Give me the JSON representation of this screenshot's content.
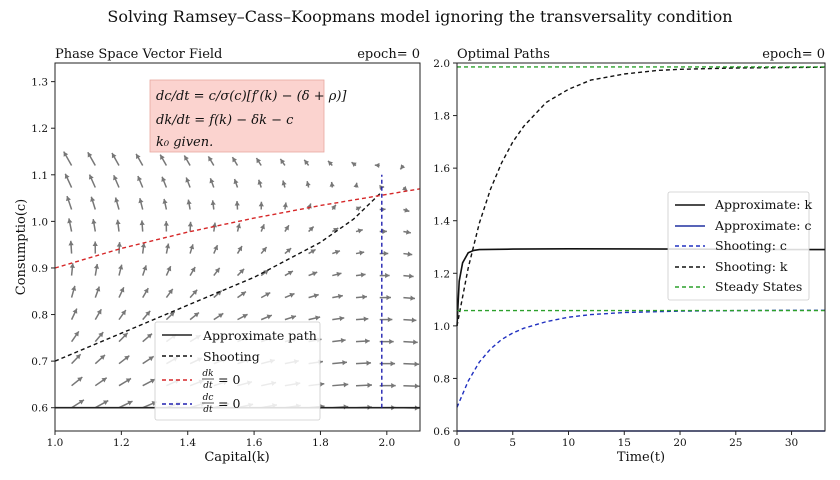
{
  "figure": {
    "title": "Solving Ramsey–Cass–Koopmans model ignoring the transversality condition"
  },
  "chart_data": [
    {
      "type": "line",
      "panel_title": "Phase Space Vector Field",
      "epoch_label": "epoch= 0",
      "xlabel": "Capital(k)",
      "ylabel": "Consumptio(c)",
      "xlim": [
        1.0,
        2.1
      ],
      "ylim": [
        0.55,
        1.34
      ],
      "xticks": [
        "1.0",
        "1.2",
        "1.4",
        "1.6",
        "1.8",
        "2.0"
      ],
      "xtick_values": [
        1.0,
        1.2,
        1.4,
        1.6,
        1.8,
        2.0
      ],
      "yticks": [
        "0.6",
        "0.7",
        "0.8",
        "0.9",
        "1.0",
        "1.1",
        "1.2",
        "1.3"
      ],
      "ytick_values": [
        0.6,
        0.7,
        0.8,
        0.9,
        1.0,
        1.1,
        1.2,
        1.3
      ],
      "grid": false,
      "legend_position": "lower-right",
      "equations": [
        "dc/dt = c/σ(c)[f′(k) − (δ + ρ)]",
        "dk/dt = f(k) − δk − c",
        "k₀ given."
      ],
      "equation_box_color": "#fbd3cf",
      "quiver": {
        "color": "#777777",
        "k_range": [
          1.05,
          2.05
        ],
        "c_range": [
          0.6,
          1.12
        ],
        "nk": 15,
        "nc": 12
      },
      "series": [
        {
          "name": "Approximate path",
          "color": "#222222",
          "dash": "solid",
          "x": [
            1.0,
            2.1
          ],
          "y": [
            0.6,
            0.6
          ]
        },
        {
          "name": "Shooting",
          "color": "#111111",
          "dash": "dashed",
          "x": [
            1.0,
            1.2,
            1.4,
            1.6,
            1.8,
            1.9,
            1.98
          ],
          "y": [
            0.7,
            0.76,
            0.82,
            0.88,
            0.955,
            1.005,
            1.06
          ]
        },
        {
          "name": "dk/dt = 0",
          "label_num": "dk",
          "label_den": "dt",
          "color": "#d62728",
          "dash": "dashed",
          "x": [
            1.0,
            1.2,
            1.4,
            1.6,
            1.8,
            2.0,
            2.1
          ],
          "y": [
            0.9,
            0.942,
            0.977,
            1.007,
            1.034,
            1.058,
            1.07
          ]
        },
        {
          "name": "dc/dt = 0",
          "label_num": "dc",
          "label_den": "dt",
          "color": "#2020b0",
          "dash": "dashed",
          "x": [
            1.985,
            1.985
          ],
          "y": [
            0.6,
            1.1
          ]
        }
      ]
    },
    {
      "type": "line",
      "panel_title": "Optimal Paths",
      "epoch_label": "epoch= 0",
      "xlabel": "Time(t)",
      "ylim": [
        0.6,
        2.0
      ],
      "xlim": [
        0,
        33
      ],
      "xticks": [
        "0",
        "5",
        "10",
        "15",
        "20",
        "25",
        "30"
      ],
      "xtick_values": [
        0,
        5,
        10,
        15,
        20,
        25,
        30
      ],
      "yticks": [
        "0.6",
        "0.8",
        "1.0",
        "1.2",
        "1.4",
        "1.6",
        "1.8",
        "2.0"
      ],
      "ytick_values": [
        0.6,
        0.8,
        1.0,
        1.2,
        1.4,
        1.6,
        1.8,
        2.0
      ],
      "grid": false,
      "legend_position": "center-right",
      "series": [
        {
          "name": "Approximate: k",
          "color": "#111111",
          "dash": "solid",
          "x": [
            0,
            0.2,
            0.5,
            1.0,
            1.5,
            2,
            5,
            10,
            20,
            30,
            33
          ],
          "y": [
            1.0,
            1.17,
            1.24,
            1.278,
            1.287,
            1.29,
            1.292,
            1.293,
            1.292,
            1.29,
            1.29
          ]
        },
        {
          "name": "Approximate: c",
          "color": "#2030a0",
          "dash": "solid",
          "x": [
            0,
            33
          ],
          "y": [
            0.6,
            0.6
          ]
        },
        {
          "name": "Shooting: c",
          "color": "#2030c0",
          "dash": "dashed",
          "x": [
            0,
            1,
            2,
            3,
            4,
            5,
            6,
            8,
            10,
            12,
            15,
            20,
            25,
            30,
            33
          ],
          "y": [
            0.69,
            0.79,
            0.862,
            0.912,
            0.948,
            0.973,
            0.991,
            1.016,
            1.033,
            1.043,
            1.051,
            1.056,
            1.058,
            1.059,
            1.059
          ]
        },
        {
          "name": "Shooting: k",
          "color": "#111111",
          "dash": "dashed",
          "x": [
            0,
            1,
            2,
            3,
            4,
            5,
            6,
            8,
            10,
            12,
            15,
            18,
            20,
            25,
            30,
            33
          ],
          "y": [
            1.0,
            1.22,
            1.39,
            1.52,
            1.62,
            1.7,
            1.76,
            1.85,
            1.9,
            1.935,
            1.958,
            1.972,
            1.976,
            1.981,
            1.983,
            1.984
          ]
        },
        {
          "name": "Steady States",
          "color": "#2ca02c",
          "dash": "dashed",
          "hlines": [
            1.985,
            1.058
          ]
        }
      ]
    }
  ]
}
